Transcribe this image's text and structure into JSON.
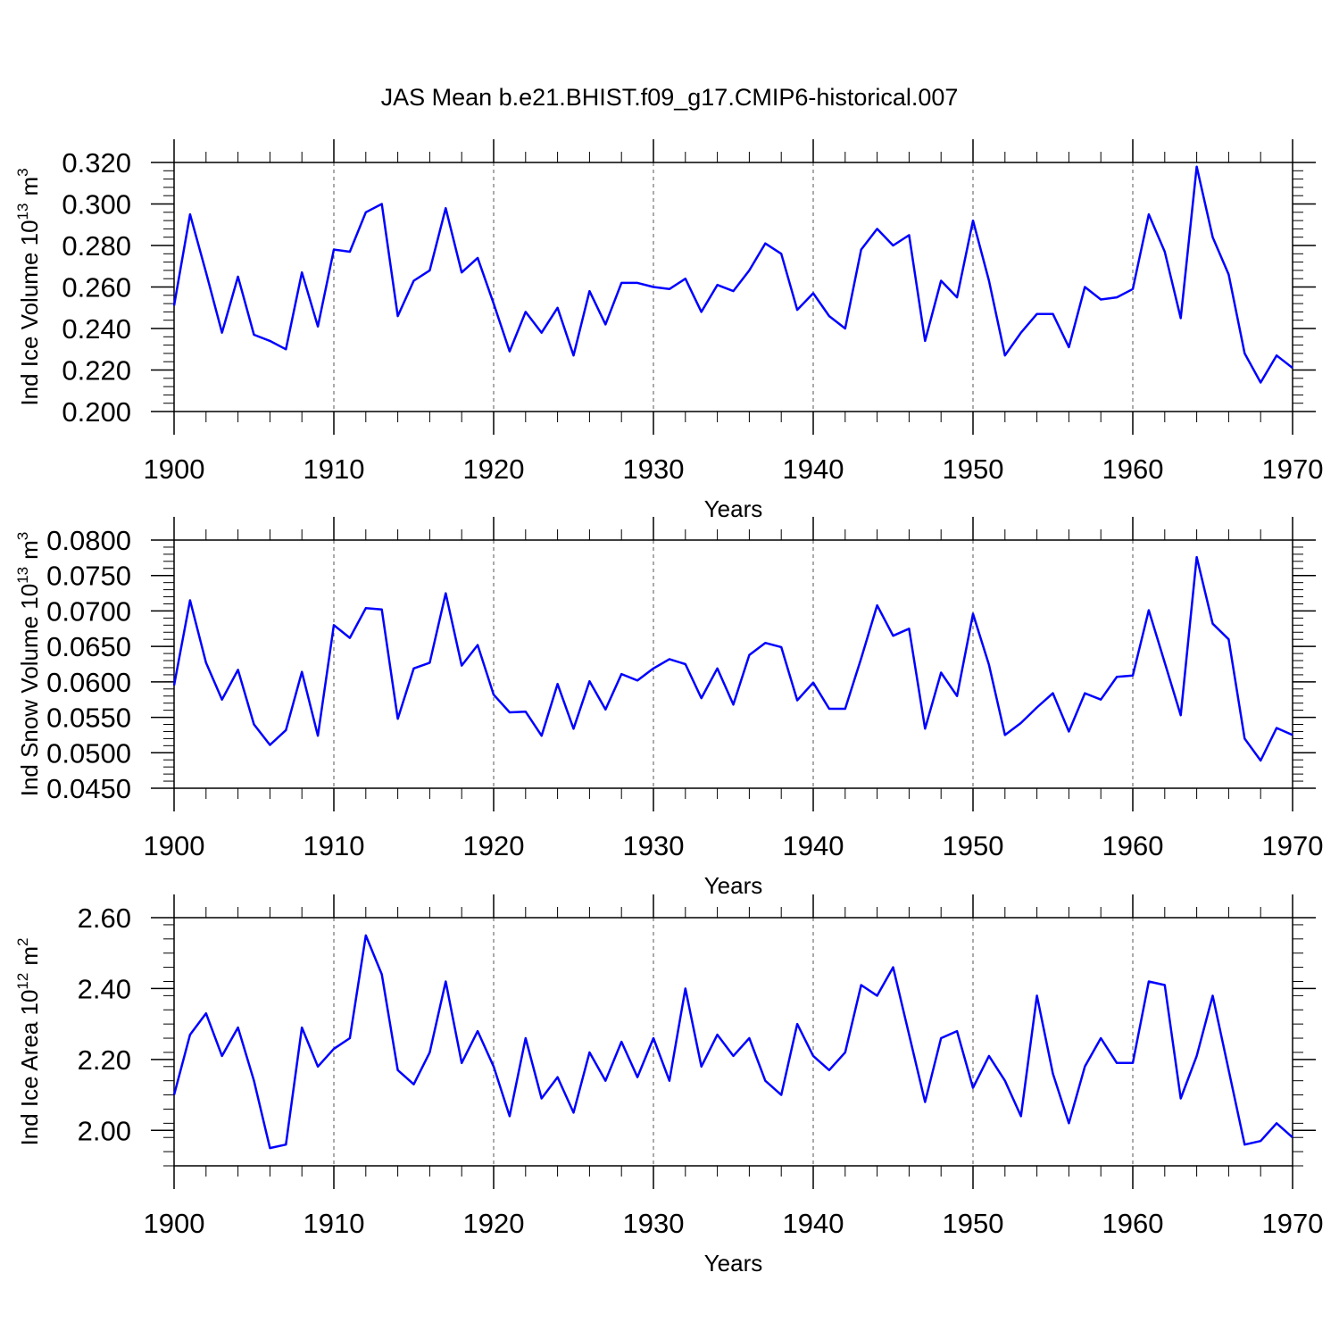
{
  "figure": {
    "title": "JAS Mean b.e21.BHIST.f09_g17.CMIP6-historical.007",
    "line_color": "#0000ff"
  },
  "chart_data": [
    {
      "type": "line",
      "xlabel": "Years",
      "ylabel": "Ind Ice Volume 10",
      "ylabel_exp": "13",
      "ylabel_unit": "m",
      "ylabel_unit_exp": "3",
      "xlim": [
        1900,
        1970
      ],
      "ylim": [
        0.2,
        0.32
      ],
      "xticks": [
        1900,
        1910,
        1920,
        1930,
        1940,
        1950,
        1960,
        1970
      ],
      "xtick_labels": [
        "1900",
        "1910",
        "1920",
        "1930",
        "1940",
        "1950",
        "1960",
        "1970"
      ],
      "yticks": [
        0.2,
        0.22,
        0.24,
        0.26,
        0.28,
        0.3,
        0.32
      ],
      "ytick_labels": [
        "0.200",
        "0.220",
        "0.240",
        "0.260",
        "0.280",
        "0.300",
        "0.320"
      ],
      "vertical_grid": "dashed at major x ticks",
      "series": [
        {
          "name": "Ind Ice Volume",
          "x": [
            1900,
            1901,
            1902,
            1903,
            1904,
            1905,
            1906,
            1907,
            1908,
            1909,
            1910,
            1911,
            1912,
            1913,
            1914,
            1915,
            1916,
            1917,
            1918,
            1919,
            1920,
            1921,
            1922,
            1923,
            1924,
            1925,
            1926,
            1927,
            1928,
            1929,
            1930,
            1931,
            1932,
            1933,
            1934,
            1935,
            1936,
            1937,
            1938,
            1939,
            1940,
            1941,
            1942,
            1943,
            1944,
            1945,
            1946,
            1947,
            1948,
            1949,
            1950,
            1951,
            1952,
            1953,
            1954,
            1955,
            1956,
            1957,
            1958,
            1959,
            1960,
            1961,
            1962,
            1963,
            1964,
            1965,
            1966,
            1967,
            1968,
            1969,
            1970
          ],
          "values": [
            0.251,
            0.295,
            0.267,
            0.238,
            0.265,
            0.237,
            0.234,
            0.23,
            0.267,
            0.241,
            0.278,
            0.277,
            0.296,
            0.3,
            0.246,
            0.263,
            0.268,
            0.298,
            0.267,
            0.274,
            0.252,
            0.229,
            0.248,
            0.238,
            0.25,
            0.227,
            0.258,
            0.242,
            0.262,
            0.262,
            0.26,
            0.259,
            0.264,
            0.248,
            0.261,
            0.258,
            0.268,
            0.281,
            0.276,
            0.249,
            0.257,
            0.246,
            0.24,
            0.278,
            0.288,
            0.28,
            0.285,
            0.234,
            0.263,
            0.255,
            0.292,
            0.263,
            0.227,
            0.238,
            0.247,
            0.247,
            0.231,
            0.26,
            0.254,
            0.255,
            0.259,
            0.295,
            0.277,
            0.245,
            0.318,
            0.284,
            0.266,
            0.228,
            0.214,
            0.227,
            0.221
          ]
        }
      ]
    },
    {
      "type": "line",
      "xlabel": "Years",
      "ylabel": "Ind Snow Volume 10",
      "ylabel_exp": "13",
      "ylabel_unit": "m",
      "ylabel_unit_exp": "3",
      "xlim": [
        1900,
        1970
      ],
      "ylim": [
        0.045,
        0.08
      ],
      "xticks": [
        1900,
        1910,
        1920,
        1930,
        1940,
        1950,
        1960,
        1970
      ],
      "xtick_labels": [
        "1900",
        "1910",
        "1920",
        "1930",
        "1940",
        "1950",
        "1960",
        "1970"
      ],
      "yticks": [
        0.045,
        0.05,
        0.055,
        0.06,
        0.065,
        0.07,
        0.075,
        0.08
      ],
      "ytick_labels": [
        "0.0450",
        "0.0500",
        "0.0550",
        "0.0600",
        "0.0650",
        "0.0700",
        "0.0750",
        "0.0800"
      ],
      "vertical_grid": "dashed at major x ticks",
      "series": [
        {
          "name": "Ind Snow Volume",
          "x": [
            1900,
            1901,
            1902,
            1903,
            1904,
            1905,
            1906,
            1907,
            1908,
            1909,
            1910,
            1911,
            1912,
            1913,
            1914,
            1915,
            1916,
            1917,
            1918,
            1919,
            1920,
            1921,
            1922,
            1923,
            1924,
            1925,
            1926,
            1927,
            1928,
            1929,
            1930,
            1931,
            1932,
            1933,
            1934,
            1935,
            1936,
            1937,
            1938,
            1939,
            1940,
            1941,
            1942,
            1943,
            1944,
            1945,
            1946,
            1947,
            1948,
            1949,
            1950,
            1951,
            1952,
            1953,
            1954,
            1955,
            1956,
            1957,
            1958,
            1959,
            1960,
            1961,
            1962,
            1963,
            1964,
            1965,
            1966,
            1967,
            1968,
            1969,
            1970
          ],
          "values": [
            0.0595,
            0.0715,
            0.0627,
            0.0575,
            0.0617,
            0.054,
            0.0511,
            0.0532,
            0.0614,
            0.0524,
            0.068,
            0.0662,
            0.0704,
            0.0702,
            0.0548,
            0.0619,
            0.0627,
            0.0725,
            0.0623,
            0.0652,
            0.0582,
            0.0557,
            0.0558,
            0.0524,
            0.0597,
            0.0534,
            0.0601,
            0.0561,
            0.0611,
            0.0602,
            0.0619,
            0.0632,
            0.0625,
            0.0577,
            0.0619,
            0.0568,
            0.0638,
            0.0655,
            0.0649,
            0.0574,
            0.0599,
            0.0562,
            0.0562,
            0.0633,
            0.0708,
            0.0665,
            0.0675,
            0.0534,
            0.0613,
            0.058,
            0.0696,
            0.0624,
            0.0525,
            0.0542,
            0.0564,
            0.0584,
            0.053,
            0.0584,
            0.0575,
            0.0607,
            0.0609,
            0.0701,
            0.0627,
            0.0553,
            0.0776,
            0.0682,
            0.066,
            0.052,
            0.0489,
            0.0535,
            0.0525
          ]
        }
      ]
    },
    {
      "type": "line",
      "xlabel": "Years",
      "ylabel": "Ind Ice Area 10",
      "ylabel_exp": "12",
      "ylabel_unit": "m",
      "ylabel_unit_exp": "2",
      "xlim": [
        1900,
        1970
      ],
      "ylim": [
        1.9,
        2.6
      ],
      "xticks": [
        1900,
        1910,
        1920,
        1930,
        1940,
        1950,
        1960,
        1970
      ],
      "xtick_labels": [
        "1900",
        "1910",
        "1920",
        "1930",
        "1940",
        "1950",
        "1960",
        "1970"
      ],
      "yticks": [
        2.0,
        2.2,
        2.4,
        2.6
      ],
      "ytick_labels": [
        "2.00",
        "2.20",
        "2.40",
        "2.60"
      ],
      "vertical_grid": "dashed at major x ticks",
      "series": [
        {
          "name": "Ind Ice Area",
          "x": [
            1900,
            1901,
            1902,
            1903,
            1904,
            1905,
            1906,
            1907,
            1908,
            1909,
            1910,
            1911,
            1912,
            1913,
            1914,
            1915,
            1916,
            1917,
            1918,
            1919,
            1920,
            1921,
            1922,
            1923,
            1924,
            1925,
            1926,
            1927,
            1928,
            1929,
            1930,
            1931,
            1932,
            1933,
            1934,
            1935,
            1936,
            1937,
            1938,
            1939,
            1940,
            1941,
            1942,
            1943,
            1944,
            1945,
            1946,
            1947,
            1948,
            1949,
            1950,
            1951,
            1952,
            1953,
            1954,
            1955,
            1956,
            1957,
            1958,
            1959,
            1960,
            1961,
            1962,
            1963,
            1964,
            1965,
            1966,
            1967,
            1968,
            1969,
            1970
          ],
          "values": [
            2.1,
            2.27,
            2.33,
            2.21,
            2.29,
            2.14,
            1.95,
            1.96,
            2.29,
            2.18,
            2.23,
            2.26,
            2.55,
            2.44,
            2.17,
            2.13,
            2.22,
            2.42,
            2.19,
            2.28,
            2.18,
            2.04,
            2.26,
            2.09,
            2.15,
            2.05,
            2.22,
            2.14,
            2.25,
            2.15,
            2.26,
            2.14,
            2.4,
            2.18,
            2.27,
            2.21,
            2.26,
            2.14,
            2.1,
            2.3,
            2.21,
            2.17,
            2.22,
            2.41,
            2.38,
            2.46,
            2.27,
            2.08,
            2.26,
            2.28,
            2.12,
            2.21,
            2.14,
            2.04,
            2.38,
            2.16,
            2.02,
            2.18,
            2.26,
            2.19,
            2.19,
            2.42,
            2.41,
            2.09,
            2.21,
            2.38,
            2.17,
            1.96,
            1.97,
            2.02,
            1.98
          ]
        }
      ]
    }
  ]
}
